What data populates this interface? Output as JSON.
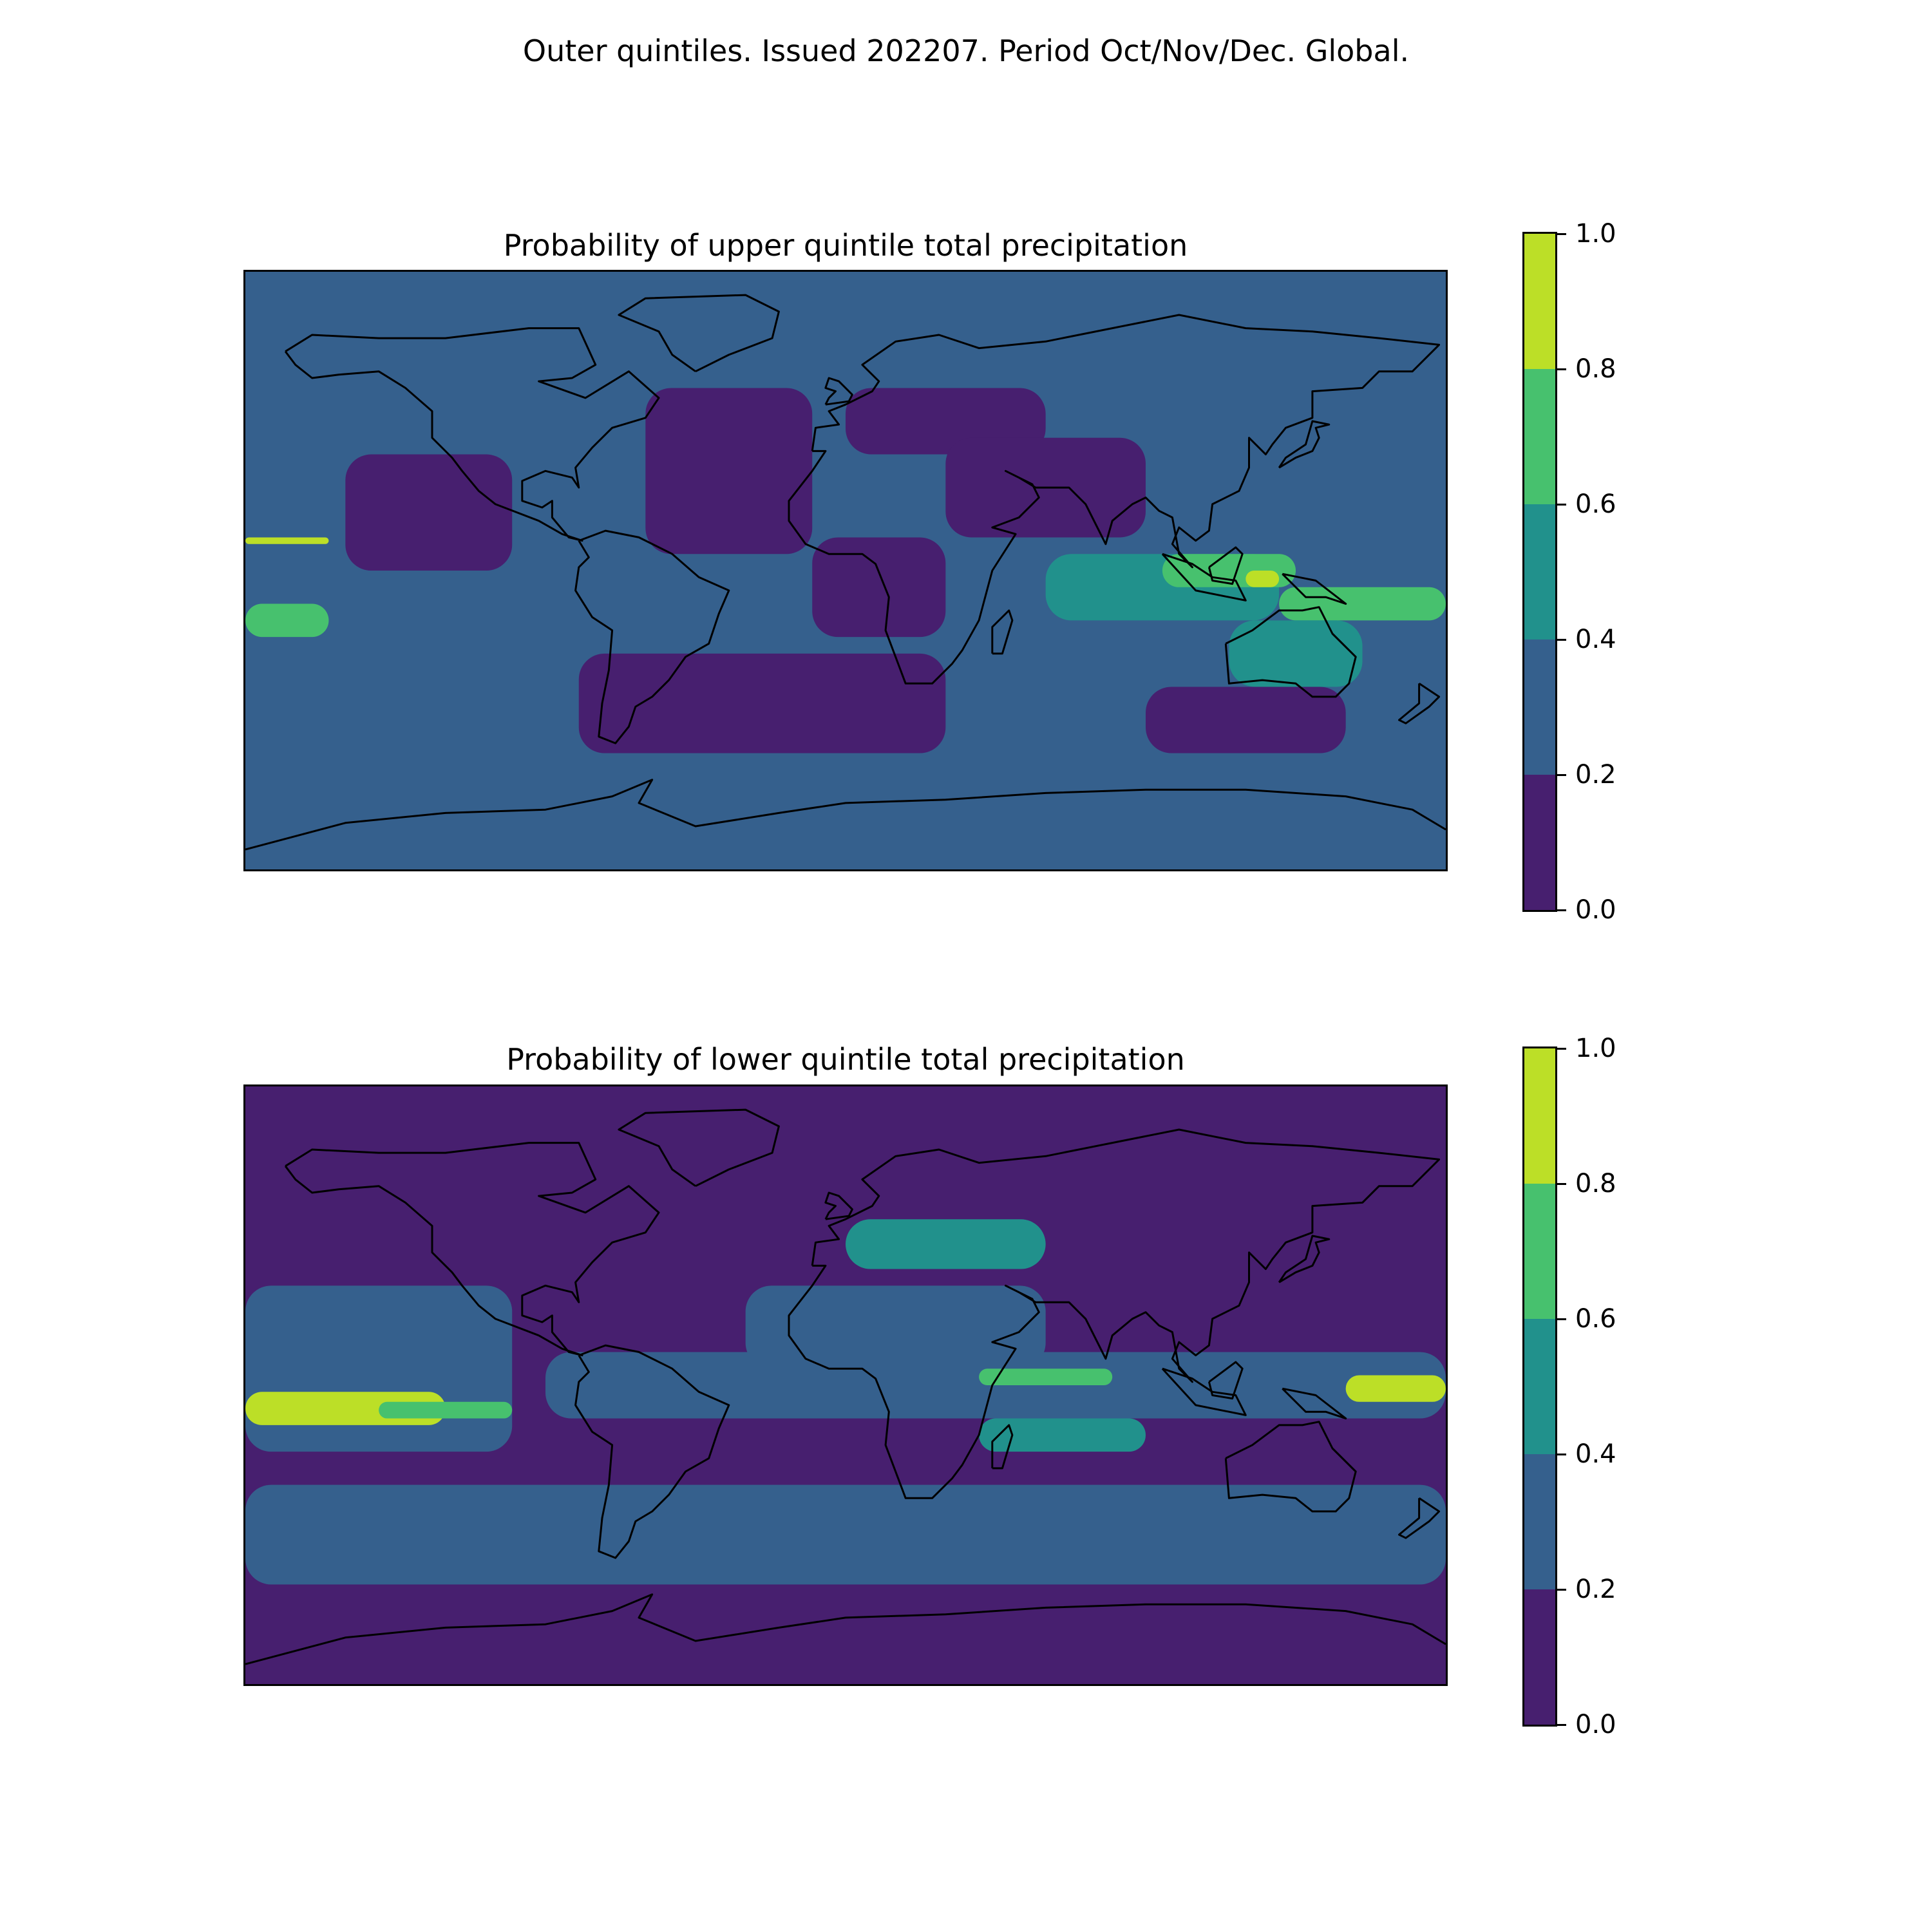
{
  "title": "Outer quintiles. Issued 202207. Period Oct/Nov/Dec. Global.",
  "colors": {
    "levels": [
      "#440154",
      "#3b528b",
      "#21918c",
      "#5ec962",
      "#bfe22f"
    ],
    "map_levels": [
      "#471f6f",
      "#35608d",
      "#21918c",
      "#47c16e",
      "#bcdf27"
    ],
    "coastline": "#000000"
  },
  "colorbar": {
    "levels": [
      0.0,
      0.2,
      0.4,
      0.6,
      0.8,
      1.0
    ],
    "tick_labels": [
      "0.0",
      "0.2",
      "0.4",
      "0.6",
      "0.8",
      "1.0"
    ]
  },
  "chart_data": [
    {
      "type": "heatmap",
      "title": "Probability of upper quintile total precipitation",
      "projection": "PlateCarree",
      "extent": {
        "lon": [
          -180,
          180
        ],
        "lat": [
          -90,
          90
        ]
      },
      "value_range": [
        0.0,
        1.0
      ],
      "background_value": 0.3,
      "regions": [
        {
          "lon": [
            -150,
            -100
          ],
          "lat": [
            0,
            35
          ],
          "value": 0.1
        },
        {
          "lon": [
            -60,
            -10
          ],
          "lat": [
            5,
            55
          ],
          "value": 0.1
        },
        {
          "lon": [
            -10,
            30
          ],
          "lat": [
            -20,
            10
          ],
          "value": 0.1
        },
        {
          "lon": [
            -80,
            30
          ],
          "lat": [
            -55,
            -25
          ],
          "value": 0.1
        },
        {
          "lon": [
            90,
            150
          ],
          "lat": [
            -55,
            -35
          ],
          "value": 0.1
        },
        {
          "lon": [
            0,
            60
          ],
          "lat": [
            35,
            55
          ],
          "value": 0.1
        },
        {
          "lon": [
            30,
            90
          ],
          "lat": [
            10,
            40
          ],
          "value": 0.1
        },
        {
          "lon": [
            60,
            130
          ],
          "lat": [
            -15,
            5
          ],
          "value": 0.5
        },
        {
          "lon": [
            130,
            180
          ],
          "lat": [
            -15,
            -5
          ],
          "value": 0.6
        },
        {
          "lon": [
            115,
            155
          ],
          "lat": [
            -35,
            -15
          ],
          "value": 0.5
        },
        {
          "lon": [
            95,
            135
          ],
          "lat": [
            -5,
            5
          ],
          "value": 0.7
        },
        {
          "lon": [
            120,
            130
          ],
          "lat": [
            -5,
            0
          ],
          "value": 0.9
        },
        {
          "lon": [
            -180,
            -155
          ],
          "lat": [
            -20,
            -10
          ],
          "value": 0.7
        },
        {
          "lon": [
            -180,
            -155
          ],
          "lat": [
            8,
            10
          ],
          "value": 0.9
        }
      ]
    },
    {
      "type": "heatmap",
      "title": "Probability of lower quintile total precipitation",
      "projection": "PlateCarree",
      "extent": {
        "lon": [
          -180,
          180
        ],
        "lat": [
          -90,
          90
        ]
      },
      "value_range": [
        0.0,
        1.0
      ],
      "background_value": 0.1,
      "regions": [
        {
          "lon": [
            -180,
            180
          ],
          "lat": [
            -60,
            -30
          ],
          "value": 0.3
        },
        {
          "lon": [
            -30,
            60
          ],
          "lat": [
            5,
            30
          ],
          "value": 0.3
        },
        {
          "lon": [
            -90,
            180
          ],
          "lat": [
            -10,
            10
          ],
          "value": 0.3
        },
        {
          "lon": [
            -180,
            -100
          ],
          "lat": [
            -20,
            30
          ],
          "value": 0.3
        },
        {
          "lon": [
            -180,
            -120
          ],
          "lat": [
            -12,
            -2
          ],
          "value": 0.9
        },
        {
          "lon": [
            -140,
            -100
          ],
          "lat": [
            -10,
            -5
          ],
          "value": 0.7
        },
        {
          "lon": [
            40,
            80
          ],
          "lat": [
            0,
            5
          ],
          "value": 0.7
        },
        {
          "lon": [
            150,
            180
          ],
          "lat": [
            -5,
            3
          ],
          "value": 0.9
        },
        {
          "lon": [
            0,
            60
          ],
          "lat": [
            35,
            50
          ],
          "value": 0.5
        },
        {
          "lon": [
            40,
            90
          ],
          "lat": [
            -20,
            -10
          ],
          "value": 0.5
        }
      ]
    }
  ]
}
